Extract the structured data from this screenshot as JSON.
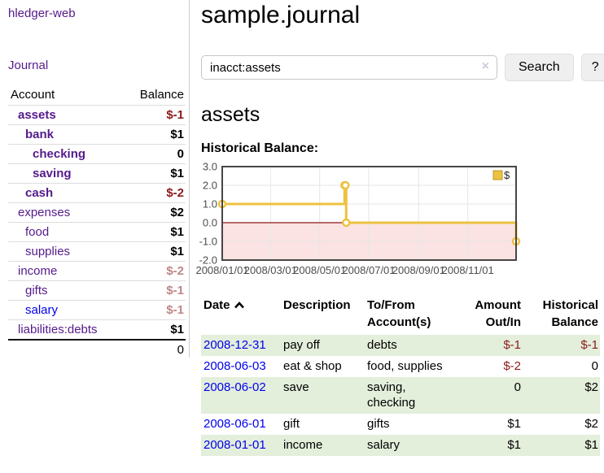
{
  "app": {
    "title": "hledger-web"
  },
  "sidebar": {
    "journal_label": "Journal",
    "table": {
      "account_header": "Account",
      "balance_header": "Balance"
    },
    "accounts": [
      {
        "name": "assets",
        "depth": 1,
        "bold": true,
        "balance": "$-1",
        "balance_class": "neg-strong",
        "unvisited": false
      },
      {
        "name": "bank",
        "depth": 2,
        "bold": true,
        "balance": "$1",
        "balance_class": "",
        "unvisited": false
      },
      {
        "name": "checking",
        "depth": 3,
        "bold": true,
        "balance": "0",
        "balance_class": "",
        "unvisited": false
      },
      {
        "name": "saving",
        "depth": 3,
        "bold": true,
        "balance": "$1",
        "balance_class": "",
        "unvisited": false
      },
      {
        "name": "cash",
        "depth": 2,
        "bold": true,
        "balance": "$-2",
        "balance_class": "neg-strong",
        "unvisited": false
      },
      {
        "name": "expenses",
        "depth": 1,
        "bold": false,
        "balance": "$2",
        "balance_class": "",
        "unvisited": false
      },
      {
        "name": "food",
        "depth": 2,
        "bold": false,
        "balance": "$1",
        "balance_class": "",
        "unvisited": false
      },
      {
        "name": "supplies",
        "depth": 2,
        "bold": false,
        "balance": "$1",
        "balance_class": "",
        "unvisited": false
      },
      {
        "name": "income",
        "depth": 1,
        "bold": false,
        "balance": "$-2",
        "balance_class": "neg-soft",
        "unvisited": false
      },
      {
        "name": "gifts",
        "depth": 2,
        "bold": false,
        "balance": "$-1",
        "balance_class": "neg-soft",
        "unvisited": false
      },
      {
        "name": "salary",
        "depth": 2,
        "bold": false,
        "balance": "$-1",
        "balance_class": "neg-soft",
        "unvisited": true
      },
      {
        "name": "liabilities:debts",
        "depth": 1,
        "bold": false,
        "balance": "$1",
        "balance_class": "",
        "unvisited": false
      }
    ],
    "total": "0"
  },
  "header": {
    "title": "sample.journal"
  },
  "search": {
    "value": "inacct:assets",
    "clear_icon": "×",
    "button": "Search",
    "help_button": "?"
  },
  "account_page": {
    "title": "assets",
    "chart_label": "Historical Balance:"
  },
  "chart_data": {
    "type": "line",
    "step": true,
    "title": "Historical Balance",
    "series": [
      {
        "name": "$",
        "color": "#edc240",
        "points": [
          [
            "2008-01-01",
            1
          ],
          [
            "2008-06-01",
            2
          ],
          [
            "2008-06-02",
            2
          ],
          [
            "2008-06-03",
            0
          ],
          [
            "2008-12-31",
            -1
          ]
        ]
      }
    ],
    "x_range": [
      "2008-01-01",
      "2008-12-31"
    ],
    "xticks": [
      "2008/01/01",
      "2008/03/01",
      "2008/05/01",
      "2008/07/01",
      "2008/09/01",
      "2008/11/01"
    ],
    "yticks": [
      "3.0",
      "2.0",
      "1.0",
      "0.0",
      "-1.0",
      "-2.0"
    ],
    "ylim": [
      -2,
      3
    ],
    "grid": true,
    "legend_position": "top-right",
    "legend_label": "$",
    "negative_region_fill": "#fbe3e3",
    "zero_line_color": "#8b1717",
    "grid_color": "#e6e6e6",
    "border_color": "#464646",
    "axis_label_color": "#4d4d4d",
    "marker_fill": "#ffffff"
  },
  "register": {
    "headers": {
      "date": "Date",
      "description": "Description",
      "accounts": "To/From Account(s)",
      "amount": "Amount Out/In",
      "balance": "Historical Balance"
    },
    "sort": "ascending",
    "rows": [
      {
        "date": "2008-12-31",
        "description": "pay off",
        "accounts": "debts",
        "amount": "$-1",
        "amount_class": "neg-strong",
        "balance": "$-1",
        "balance_class": "neg-strong"
      },
      {
        "date": "2008-06-03",
        "description": "eat & shop",
        "accounts": "food, supplies",
        "amount": "$-2",
        "amount_class": "neg-strong",
        "balance": "0",
        "balance_class": ""
      },
      {
        "date": "2008-06-02",
        "description": "save",
        "accounts": "saving, checking",
        "amount": "0",
        "amount_class": "",
        "balance": "$2",
        "balance_class": ""
      },
      {
        "date": "2008-06-01",
        "description": "gift",
        "accounts": "gifts",
        "amount": "$1",
        "amount_class": "",
        "balance": "$2",
        "balance_class": ""
      },
      {
        "date": "2008-01-01",
        "description": "income",
        "accounts": "salary",
        "amount": "$1",
        "amount_class": "",
        "balance": "$1",
        "balance_class": ""
      }
    ]
  },
  "colors": {
    "visited_link_purple": "#551a8b",
    "unvisited_link_blue": "#0000ee",
    "negative_strong_red": "#8c1a1a",
    "negative_soft_red": "#bf8787",
    "row_stripe_green": "#e3eedb",
    "divider_gray": "#cccccc",
    "row_border_gray": "#dddddd",
    "button_bg": "#efefef",
    "chart_series_yellow": "#edc240"
  }
}
